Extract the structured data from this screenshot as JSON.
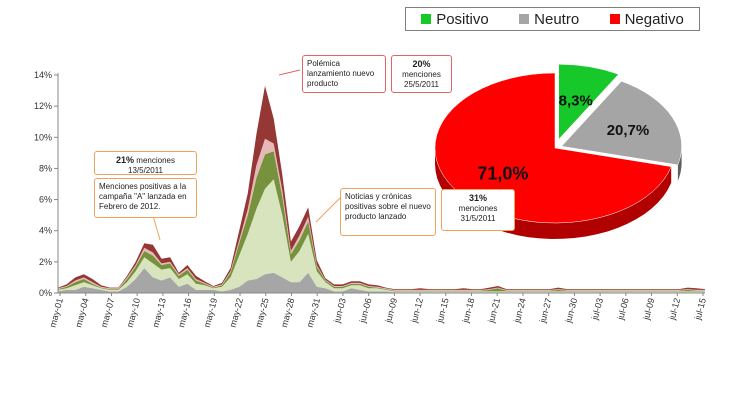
{
  "legend": {
    "items": [
      {
        "label": "Positivo",
        "color": "#16c82a"
      },
      {
        "label": "Neutro",
        "color": "#a5a5a5"
      },
      {
        "label": "Negativo",
        "color": "#ff0000"
      }
    ]
  },
  "callouts": {
    "c1_pct": "21%",
    "c1_text": "menciones",
    "c1_date": "13/5/2011",
    "c2_text": "Menciones positivas a la campaña \"A\" lanzada en Febrero de 2012.",
    "c3_text": "Polémica lanzamiento nuevo producto",
    "c4_pct": "20%",
    "c4_text": "menciones",
    "c4_date": "25/5/2011",
    "c5_text": "Noticias y crónicas positivas sobre el nuevo producto lanzado",
    "c6_pct": "31%",
    "c6_text": "menciones",
    "c6_date": "31/5/2011"
  },
  "chart_data": [
    {
      "type": "area",
      "stacked": true,
      "ylim": [
        0,
        14
      ],
      "yticks": [
        "0%",
        "2%",
        "4%",
        "6%",
        "8%",
        "10%",
        "12%",
        "14%"
      ],
      "x_tick_labels": [
        "may-01",
        "may-04",
        "may-07",
        "may-10",
        "may-13",
        "may-16",
        "may-19",
        "may-22",
        "may-25",
        "may-28",
        "may-31",
        "jun-03",
        "jun-06",
        "jun-09",
        "jun-12",
        "jun-15",
        "jun-18",
        "jun-21",
        "jun-24",
        "jun-27",
        "jun-30",
        "jul-03",
        "jul-06",
        "jul-09",
        "jul-12",
        "jul-15"
      ],
      "series": [
        {
          "color": "#a6a6a6",
          "values": [
            0.1,
            0.2,
            0.2,
            0.4,
            0.3,
            0.2,
            0.1,
            0.1,
            0.4,
            0.9,
            1.6,
            1.0,
            0.8,
            1.0,
            0.4,
            0.6,
            0.2,
            0.2,
            0.2,
            0.1,
            0.2,
            0.4,
            0.8,
            0.9,
            1.2,
            1.3,
            1.0,
            0.7,
            0.7,
            1.3,
            0.4,
            0.3,
            0.1,
            0.1,
            0.3,
            0.2,
            0.1,
            0.1,
            0.1,
            0.05,
            0.05,
            0.05,
            0.05,
            0.05,
            0.05,
            0.05,
            0.05,
            0.05,
            0.05,
            0.05,
            0.05,
            0.05,
            0.05,
            0.05,
            0.05,
            0.05,
            0.05,
            0.05,
            0.05,
            0.05,
            0.05,
            0.05,
            0.05,
            0.05,
            0.05,
            0.05,
            0.05,
            0.05,
            0.05,
            0.05,
            0.05,
            0.05,
            0.05,
            0.05,
            0.05,
            0.05
          ]
        },
        {
          "color": "#d7e4bd",
          "values": [
            0.1,
            0.1,
            0.3,
            0.3,
            0.2,
            0.1,
            0.1,
            0.1,
            0.3,
            0.5,
            0.7,
            0.9,
            0.7,
            0.6,
            0.5,
            0.6,
            0.4,
            0.3,
            0.1,
            0.3,
            0.8,
            2.0,
            3.0,
            4.5,
            5.5,
            6.0,
            4.0,
            1.3,
            2.0,
            2.5,
            1.0,
            0.4,
            0.2,
            0.2,
            0.2,
            0.3,
            0.2,
            0.2,
            0.1,
            0.05,
            0.05,
            0.05,
            0.05,
            0.05,
            0.05,
            0.05,
            0.05,
            0.05,
            0.05,
            0.05,
            0.05,
            0.05,
            0.05,
            0.05,
            0.05,
            0.05,
            0.05,
            0.05,
            0.05,
            0.05,
            0.05,
            0.05,
            0.05,
            0.05,
            0.05,
            0.05,
            0.05,
            0.05,
            0.05,
            0.05,
            0.05,
            0.05,
            0.05,
            0.05,
            0.05,
            0.05
          ]
        },
        {
          "color": "#76923c",
          "values": [
            0.05,
            0.1,
            0.2,
            0.2,
            0.1,
            0.05,
            0.05,
            0.05,
            0.2,
            0.3,
            0.4,
            0.5,
            0.3,
            0.3,
            0.2,
            0.3,
            0.2,
            0.1,
            0.05,
            0.1,
            0.3,
            0.8,
            1.2,
            2.0,
            2.2,
            1.8,
            1.2,
            0.5,
            0.7,
            0.8,
            0.3,
            0.1,
            0.1,
            0.1,
            0.1,
            0.1,
            0.1,
            0.05,
            0.05,
            0.05,
            0.05,
            0.05,
            0.05,
            0.05,
            0.05,
            0.05,
            0.05,
            0.05,
            0.05,
            0.05,
            0.1,
            0.2,
            0.05,
            0.05,
            0.05,
            0.05,
            0.05,
            0.05,
            0.1,
            0.05,
            0.05,
            0.05,
            0.05,
            0.05,
            0.05,
            0.05,
            0.05,
            0.05,
            0.05,
            0.05,
            0.05,
            0.05,
            0.05,
            0.1,
            0.05,
            0.05
          ]
        },
        {
          "color": "#e6b9b8",
          "values": [
            0.05,
            0.05,
            0.1,
            0.1,
            0.1,
            0.05,
            0.05,
            0.05,
            0.1,
            0.1,
            0.2,
            0.2,
            0.1,
            0.1,
            0.1,
            0.1,
            0.1,
            0.05,
            0.05,
            0.05,
            0.1,
            0.2,
            0.4,
            0.8,
            1.0,
            0.5,
            0.4,
            0.2,
            0.3,
            0.3,
            0.1,
            0.05,
            0.05,
            0.05,
            0.05,
            0.05,
            0.05,
            0.05,
            0.05,
            0.05,
            0.05,
            0.05,
            0.05,
            0.05,
            0.05,
            0.05,
            0.05,
            0.05,
            0.05,
            0.05,
            0.05,
            0.05,
            0.05,
            0.05,
            0.05,
            0.05,
            0.05,
            0.05,
            0.05,
            0.05,
            0.05,
            0.05,
            0.05,
            0.05,
            0.05,
            0.05,
            0.05,
            0.05,
            0.05,
            0.05,
            0.05,
            0.05,
            0.05,
            0.05,
            0.05,
            0.05
          ]
        },
        {
          "color": "#953735",
          "values": [
            0.05,
            0.1,
            0.2,
            0.2,
            0.2,
            0.1,
            0.05,
            0.05,
            0.1,
            0.2,
            0.3,
            0.5,
            0.3,
            0.3,
            0.1,
            0.2,
            0.2,
            0.1,
            0.05,
            0.1,
            0.2,
            0.6,
            1.0,
            2.0,
            3.4,
            1.6,
            1.0,
            0.6,
            0.6,
            0.6,
            0.3,
            0.1,
            0.1,
            0.1,
            0.1,
            0.1,
            0.1,
            0.1,
            0.05,
            0.05,
            0.05,
            0.05,
            0.1,
            0.05,
            0.05,
            0.05,
            0.05,
            0.1,
            0.05,
            0.05,
            0.1,
            0.1,
            0.05,
            0.05,
            0.05,
            0.05,
            0.05,
            0.05,
            0.1,
            0.05,
            0.05,
            0.05,
            0.05,
            0.05,
            0.05,
            0.05,
            0.05,
            0.05,
            0.05,
            0.05,
            0.05,
            0.05,
            0.05,
            0.1,
            0.1,
            0.05
          ]
        }
      ]
    },
    {
      "type": "pie",
      "labels": [
        "Positivo",
        "Neutro",
        "Negativo"
      ],
      "values": [
        8.3,
        20.7,
        71.0
      ],
      "value_labels": [
        "8,3%",
        "20,7%",
        "71,0%"
      ],
      "colors": [
        "#16c82a",
        "#a5a5a5",
        "#ff0000"
      ]
    }
  ]
}
